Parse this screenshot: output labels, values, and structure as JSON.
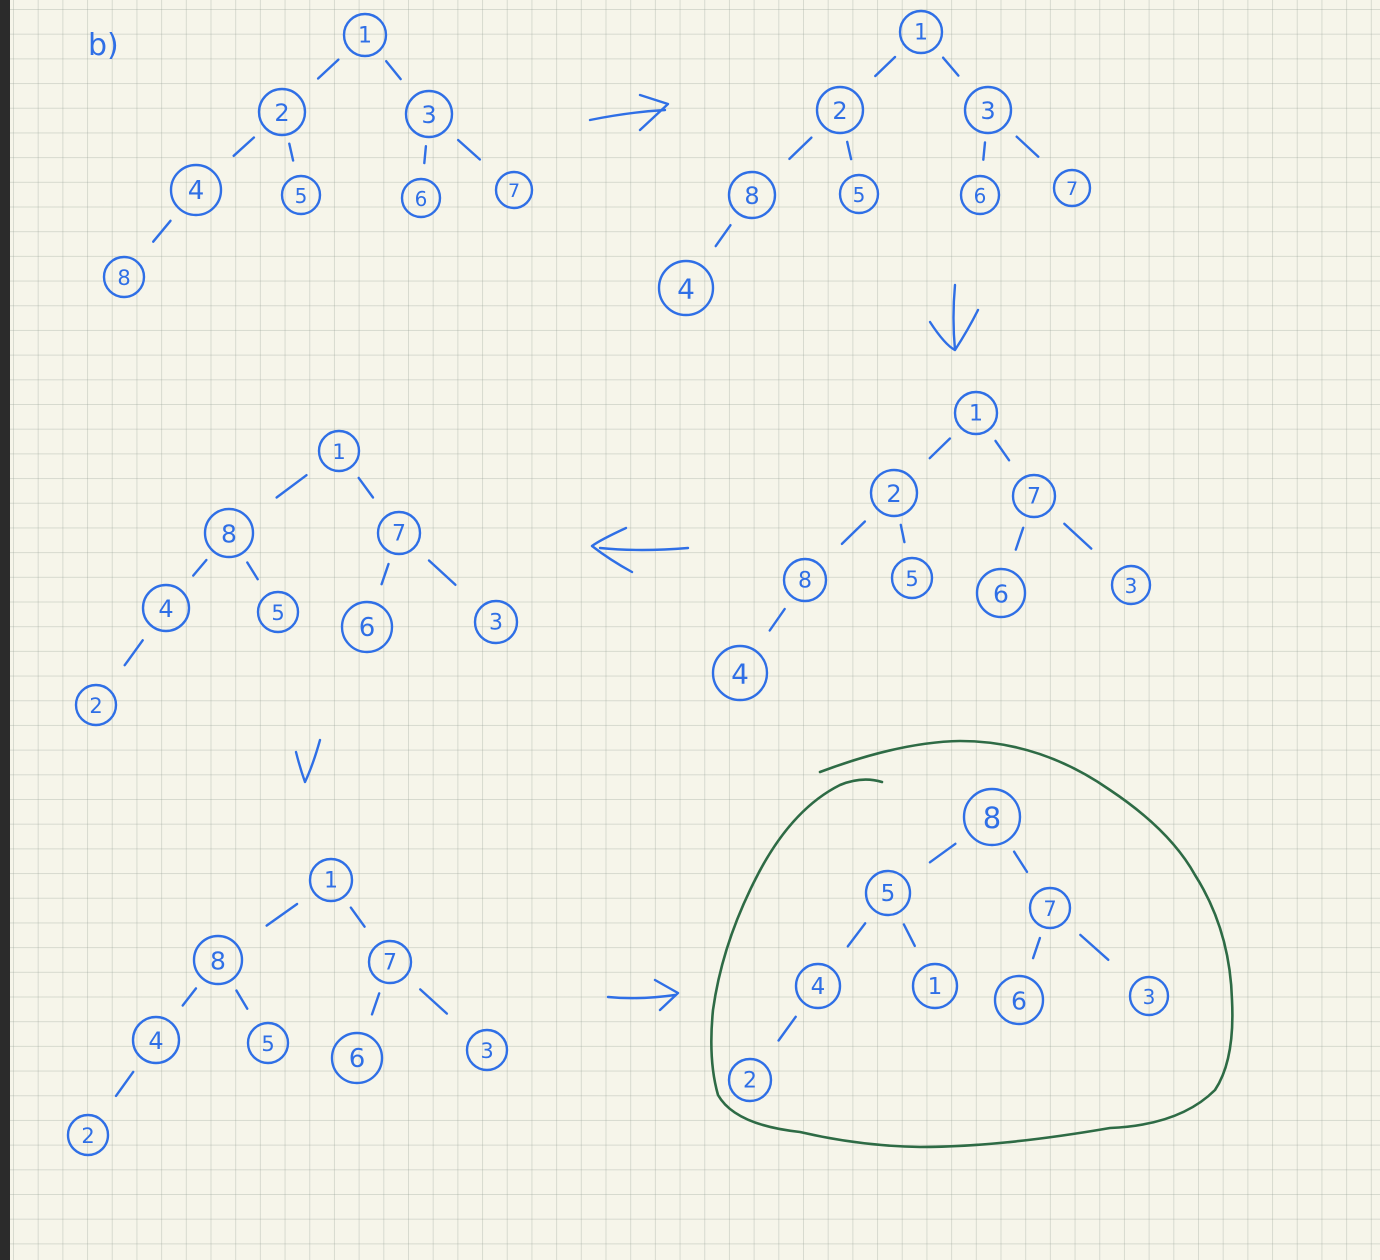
{
  "part_label": "b)",
  "colors": {
    "ink": "#2f6fe6",
    "highlight": "#2e6b45",
    "paper": "#f6f5ea",
    "grid": "#a9b0a6"
  },
  "trees": [
    {
      "id": "step-1",
      "nodes": [
        "1",
        "2",
        "3",
        "4",
        "5",
        "6",
        "7",
        "8"
      ]
    },
    {
      "id": "step-2",
      "nodes": [
        "1",
        "2",
        "3",
        "8",
        "5",
        "6",
        "7",
        "4"
      ]
    },
    {
      "id": "step-3",
      "nodes": [
        "1",
        "2",
        "7",
        "8",
        "5",
        "6",
        "3",
        "4"
      ]
    },
    {
      "id": "step-4",
      "nodes": [
        "1",
        "8",
        "7",
        "4",
        "5",
        "6",
        "3",
        "2"
      ]
    },
    {
      "id": "step-5",
      "nodes": [
        "1",
        "8",
        "7",
        "4",
        "5",
        "6",
        "3",
        "2"
      ]
    },
    {
      "id": "step-6",
      "nodes": [
        "8",
        "5",
        "7",
        "4",
        "1",
        "6",
        "3",
        "2"
      ],
      "highlighted": true
    }
  ],
  "arrows": [
    "right",
    "down",
    "left",
    "down",
    "right"
  ]
}
